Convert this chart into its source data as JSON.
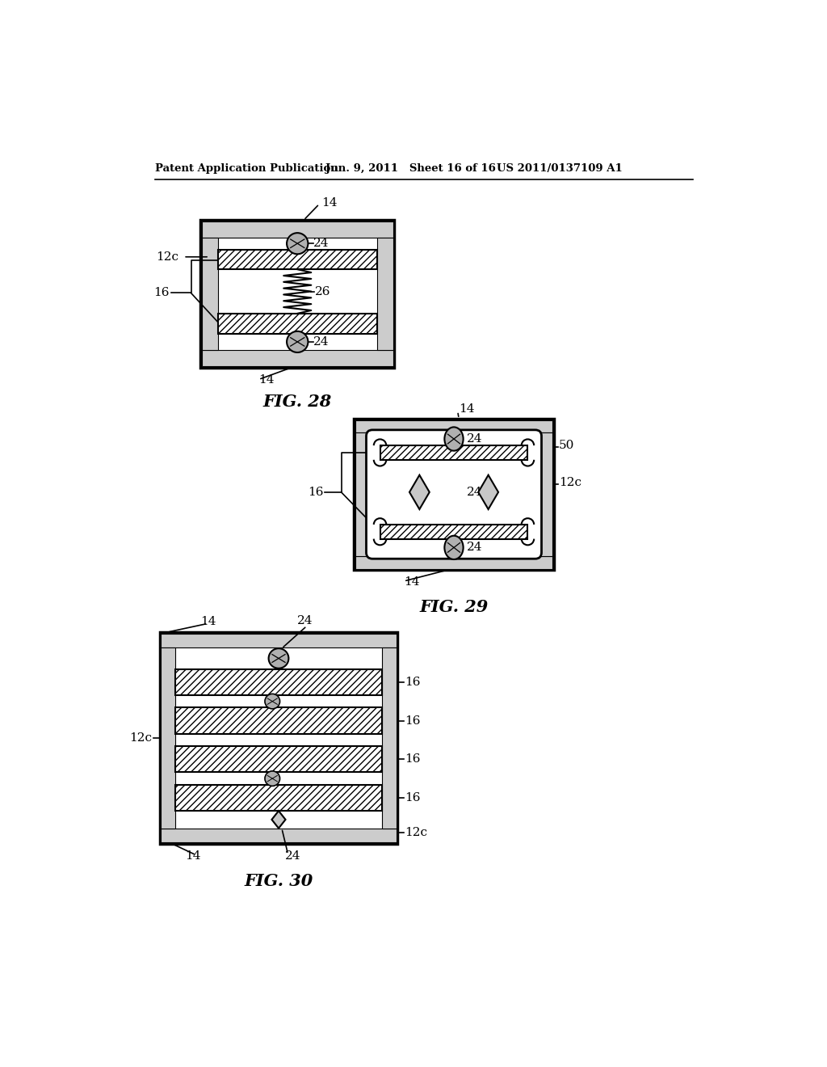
{
  "bg_color": "#ffffff",
  "lc": "#000000",
  "header_left": "Patent Application Publication",
  "header_mid": "Jun. 9, 2011   Sheet 16 of 16",
  "header_right": "US 2011/0137109 A1",
  "fig28_title": "FIG. 28",
  "fig29_title": "FIG. 29",
  "fig30_title": "FIG. 30",
  "gray_strip": "#cccccc",
  "circle_fill": "#b0b0b0",
  "diamond_fill": "#c8c8c8",
  "hatch_fill": "#ffffff"
}
